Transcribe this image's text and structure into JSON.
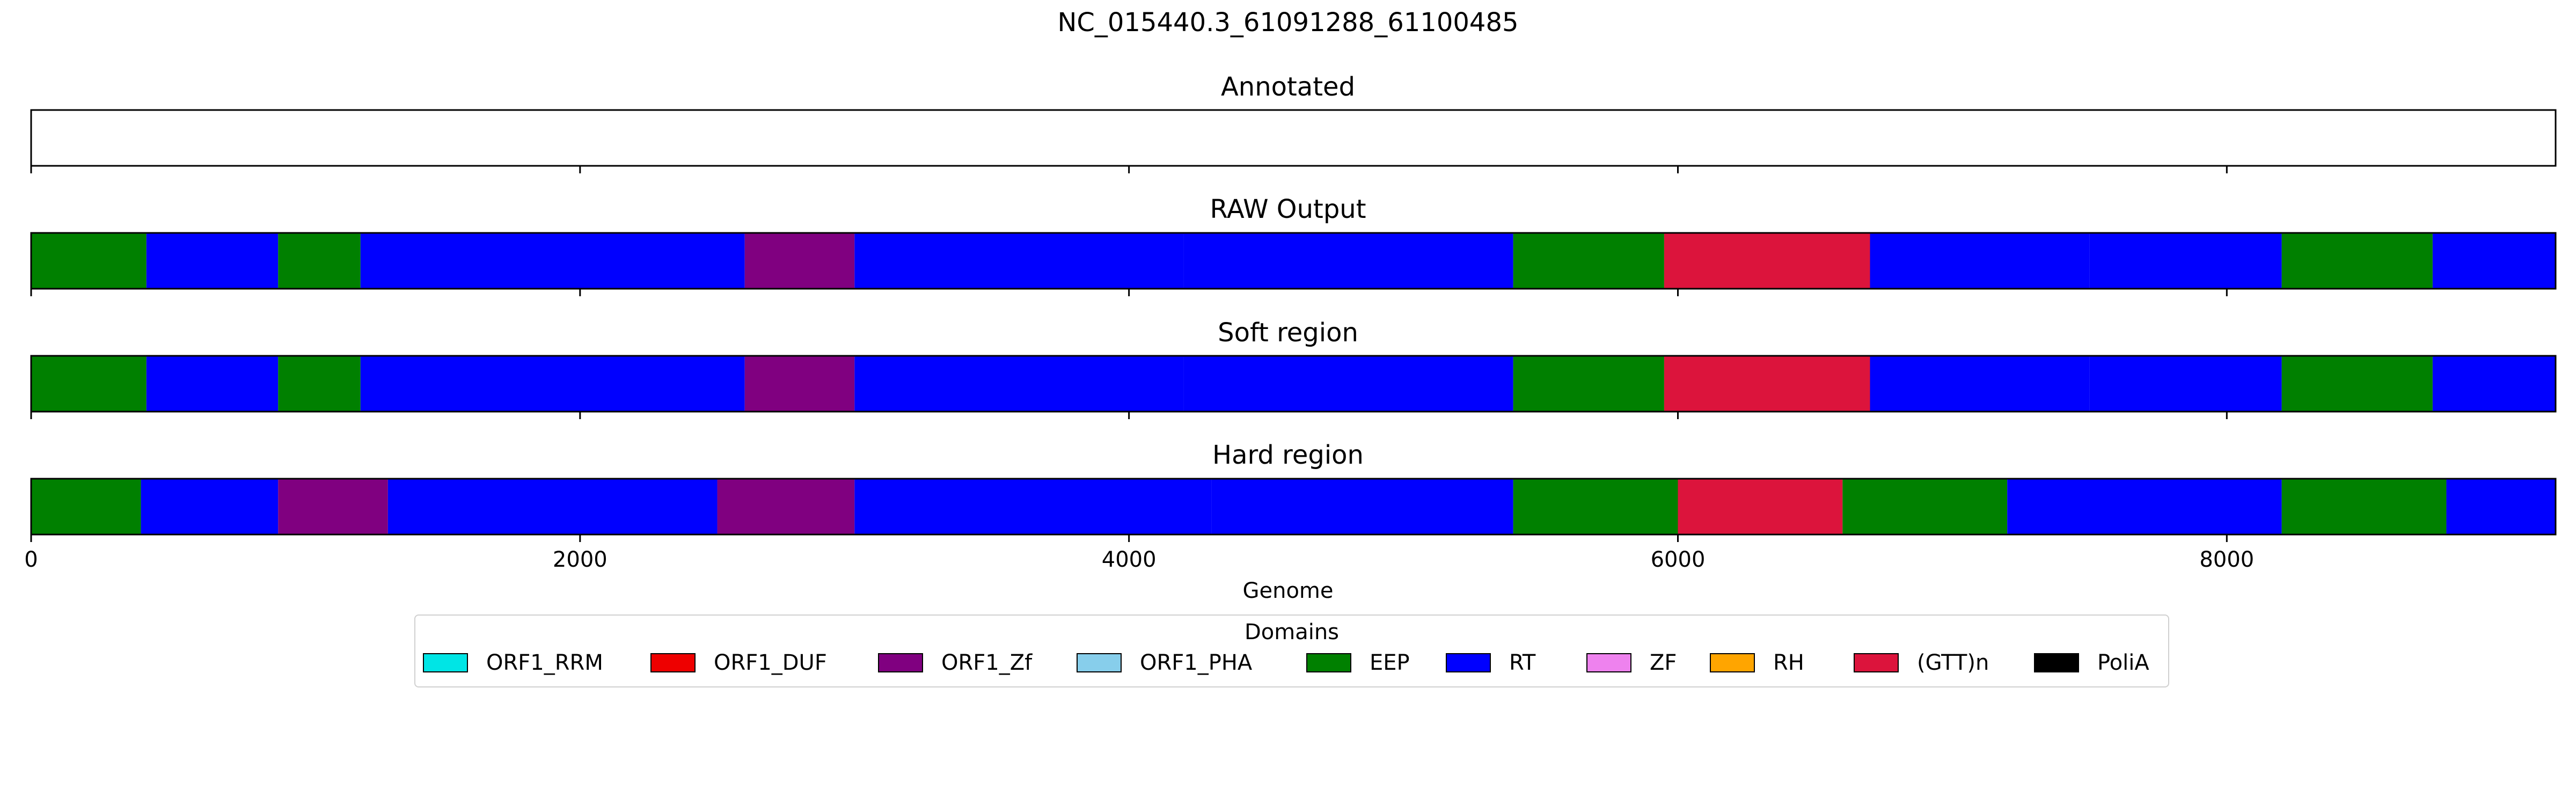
{
  "figure": {
    "suptitle": "NC_015440.3_61091288_61100485",
    "xlabel": "Genome",
    "legend_title": "Domains"
  },
  "colors": {
    "ORF1_RRM": "#00e5e5",
    "ORF1_DUF": "#ee0000",
    "ORF1_Zf": "#800080",
    "ORF1_PHA": "#87ceeb",
    "EEP": "#008000",
    "RT": "#0000ff",
    "ZF": "#ee82ee",
    "RH": "#ffa500",
    "(GTT)n": "#dc143c",
    "PoliA": "#000000"
  },
  "chart_data": {
    "type": "bar",
    "x_range": [
      0,
      9198
    ],
    "x_ticks": [
      0,
      2000,
      4000,
      6000,
      8000
    ],
    "x_tick_labels": [
      "0",
      "2000",
      "4000",
      "6000",
      "8000"
    ],
    "xlabel": "Genome",
    "legend": {
      "title": "Domains",
      "placement": "bottom-center",
      "entries": [
        "ORF1_RRM",
        "ORF1_DUF",
        "ORF1_Zf",
        "ORF1_PHA",
        "EEP",
        "RT",
        "ZF",
        "RH",
        "(GTT)n",
        "PoliA"
      ]
    },
    "panels": [
      {
        "title": "Annotated",
        "segments": []
      },
      {
        "title": "RAW Output",
        "segments": [
          {
            "start": 0,
            "end": 420,
            "label": "EEP"
          },
          {
            "start": 420,
            "end": 900,
            "label": "RT"
          },
          {
            "start": 900,
            "end": 1200,
            "label": "EEP"
          },
          {
            "start": 1200,
            "end": 2600,
            "label": "RT"
          },
          {
            "start": 2600,
            "end": 3000,
            "label": "ORF1_Zf"
          },
          {
            "start": 3000,
            "end": 4200,
            "label": "RT"
          },
          {
            "start": 4200,
            "end": 5400,
            "label": "RT"
          },
          {
            "start": 5400,
            "end": 5950,
            "label": "EEP"
          },
          {
            "start": 5950,
            "end": 6700,
            "label": "(GTT)n"
          },
          {
            "start": 6700,
            "end": 7500,
            "label": "RT"
          },
          {
            "start": 7500,
            "end": 8200,
            "label": "RT"
          },
          {
            "start": 8200,
            "end": 8750,
            "label": "EEP"
          },
          {
            "start": 8750,
            "end": 9198,
            "label": "RT"
          }
        ]
      },
      {
        "title": "Soft region",
        "segments": [
          {
            "start": 0,
            "end": 420,
            "label": "EEP"
          },
          {
            "start": 420,
            "end": 900,
            "label": "RT"
          },
          {
            "start": 900,
            "end": 1200,
            "label": "EEP"
          },
          {
            "start": 1200,
            "end": 2600,
            "label": "RT"
          },
          {
            "start": 2600,
            "end": 3000,
            "label": "ORF1_Zf"
          },
          {
            "start": 3000,
            "end": 4200,
            "label": "RT"
          },
          {
            "start": 4200,
            "end": 5400,
            "label": "RT"
          },
          {
            "start": 5400,
            "end": 5950,
            "label": "EEP"
          },
          {
            "start": 5950,
            "end": 6700,
            "label": "(GTT)n"
          },
          {
            "start": 6700,
            "end": 7500,
            "label": "RT"
          },
          {
            "start": 7500,
            "end": 8200,
            "label": "RT"
          },
          {
            "start": 8200,
            "end": 8750,
            "label": "EEP"
          },
          {
            "start": 8750,
            "end": 9198,
            "label": "RT"
          }
        ]
      },
      {
        "title": "Hard region",
        "segments": [
          {
            "start": 0,
            "end": 400,
            "label": "EEP"
          },
          {
            "start": 400,
            "end": 900,
            "label": "RT"
          },
          {
            "start": 900,
            "end": 1300,
            "label": "ORF1_Zf"
          },
          {
            "start": 1300,
            "end": 2500,
            "label": "RT"
          },
          {
            "start": 2500,
            "end": 3000,
            "label": "ORF1_Zf"
          },
          {
            "start": 3000,
            "end": 4300,
            "label": "RT"
          },
          {
            "start": 4300,
            "end": 5400,
            "label": "RT"
          },
          {
            "start": 5400,
            "end": 6000,
            "label": "EEP"
          },
          {
            "start": 6000,
            "end": 6600,
            "label": "(GTT)n"
          },
          {
            "start": 6600,
            "end": 7200,
            "label": "EEP"
          },
          {
            "start": 7200,
            "end": 8200,
            "label": "RT"
          },
          {
            "start": 8200,
            "end": 8800,
            "label": "EEP"
          },
          {
            "start": 8800,
            "end": 9198,
            "label": "RT"
          }
        ]
      }
    ]
  }
}
